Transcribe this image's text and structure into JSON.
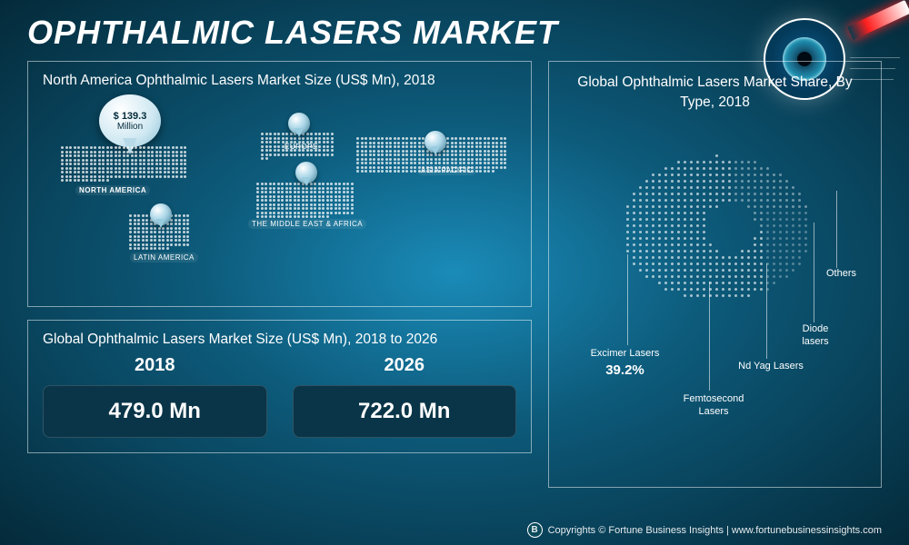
{
  "title": "OPHTHALMIC LASERS MARKET",
  "map_panel": {
    "title": "North America Ophthalmic Lasers Market Size (US$ Mn), 2018",
    "callout": {
      "line1": "$ 139.3",
      "line2": "Million"
    },
    "regions": {
      "na": "NORTH AMERICA",
      "la": "LATIN AMERICA",
      "eu": "EUROPE",
      "mea": "THE MIDDLE EAST & AFRICA",
      "ap": "ASIA PACIFIC"
    }
  },
  "market_size_panel": {
    "title": "Global Ophthalmic Lasers Market Size (US$ Mn), 2018 to 2026",
    "years": [
      "2018",
      "2026"
    ],
    "values": [
      "479.0 Mn",
      "722.0 Mn"
    ],
    "box_bg": "#0a3548"
  },
  "share_panel": {
    "title": "Global Ophthalmic Lasers Market Share, By Type, 2018",
    "segments": [
      {
        "label": "Excimer Lasers",
        "value": "39.2%"
      },
      {
        "label": "Femtosecond Lasers"
      },
      {
        "label": "Nd Yag Lasers"
      },
      {
        "label": "Diode lasers"
      },
      {
        "label": "Others"
      }
    ]
  },
  "footer": {
    "copy": "Copyrights © Fortune Business Insights | www.fortunebusinessinsights.com"
  },
  "colors": {
    "panel_border": "rgba(255,255,255,.5)",
    "accent_red": "#ff2020"
  }
}
